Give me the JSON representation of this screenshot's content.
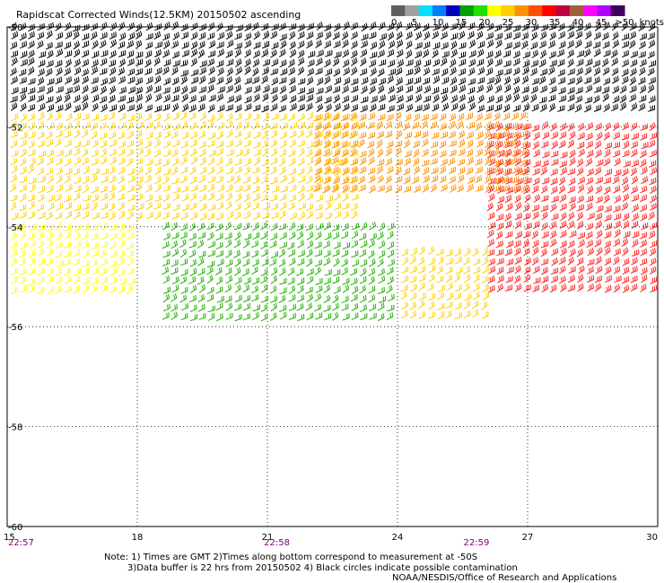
{
  "chart_data": {
    "type": "scatter",
    "title": "Rapidscat Corrected Winds(12.5KM) 20150502 ascending",
    "xlim": [
      15,
      30
    ],
    "ylim": [
      -60,
      -50
    ],
    "x_ticks": [
      "15",
      "18",
      "21",
      "24",
      "27",
      "30"
    ],
    "y_ticks": [
      "-50",
      "-52",
      "-54",
      "-56",
      "-58",
      "-60"
    ],
    "grid": true,
    "legend": {
      "position": "top-right",
      "unit": "knots",
      "bins": [
        "0",
        "5",
        "10",
        "15",
        "20",
        "25",
        "30",
        "35",
        "40",
        "45",
        ">50"
      ],
      "colors": [
        "#606060",
        "#a0a0a0",
        "#00e0ff",
        "#0080ff",
        "#0000c0",
        "#00a000",
        "#20e000",
        "#ffff00",
        "#ffd000",
        "#ff9000",
        "#ff5000",
        "#ff0000",
        "#c00040",
        "#a06040",
        "#ff00ff",
        "#b000ff",
        "#400060"
      ]
    },
    "time_labels": [
      {
        "x": 15.0,
        "label": "22:57"
      },
      {
        "x": 20.9,
        "label": "22:58"
      },
      {
        "x": 25.5,
        "label": "22:59"
      }
    ],
    "wind_fields": [
      {
        "lon_range": [
          15,
          30
        ],
        "lat_range": [
          -51.8,
          -50
        ],
        "speed_knots": 25,
        "color": "#000000",
        "note": "black barbs"
      },
      {
        "lon_range": [
          15,
          23
        ],
        "lat_range": [
          -54,
          -51.8
        ],
        "speed_knots": 22,
        "color": "#ffd000"
      },
      {
        "lon_range": [
          22,
          27
        ],
        "lat_range": [
          -53.5,
          -51.8
        ],
        "speed_knots": 28,
        "color": "#ff9000"
      },
      {
        "lon_range": [
          26,
          30
        ],
        "lat_range": [
          -55.5,
          -52
        ],
        "speed_knots": 34,
        "color": "#ff2020"
      },
      {
        "lon_range": [
          15,
          18
        ],
        "lat_range": [
          -55.5,
          -54
        ],
        "speed_knots": 20,
        "color": "#ffff00"
      },
      {
        "lon_range": [
          18.5,
          24
        ],
        "lat_range": [
          -56,
          -54
        ],
        "speed_knots": 17,
        "color": "#20b000"
      },
      {
        "lon_range": [
          24,
          26
        ],
        "lat_range": [
          -56,
          -54.5
        ],
        "speed_knots": 22,
        "color": "#ffd000"
      }
    ]
  },
  "notes": {
    "line1": "Note: 1) Times are GMT 2)Times along bottom correspond to measurement at -50S",
    "line2": "3)Data buffer is 22 hrs from 20150502 4) Black circles indicate possible contamination",
    "credit": "NOAA/NESDIS/Office of Research and Applications"
  }
}
